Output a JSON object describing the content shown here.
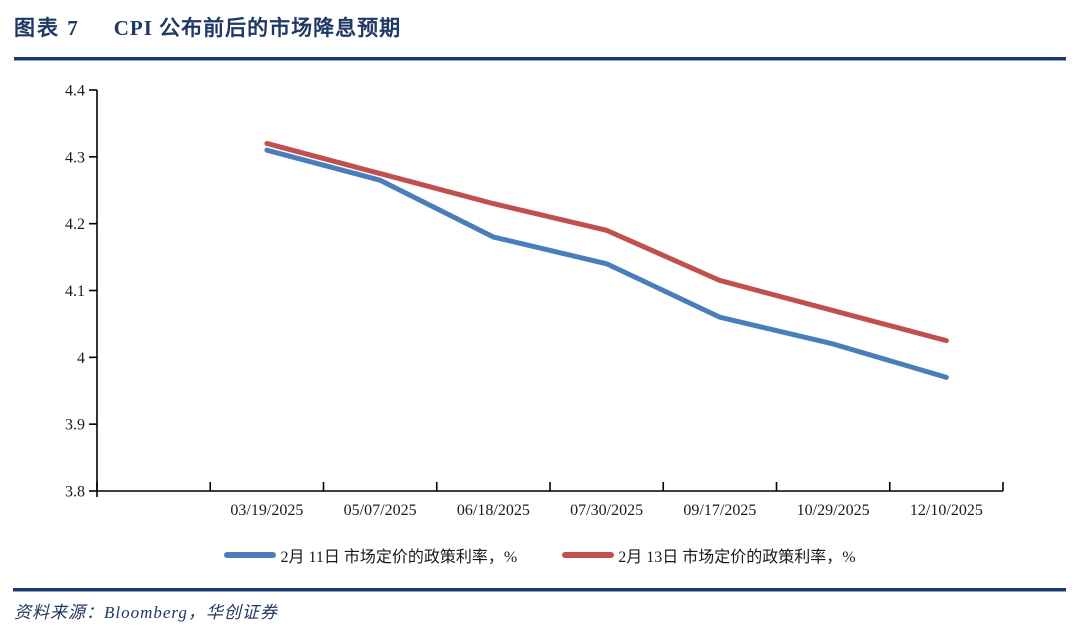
{
  "page": {
    "title_prefix": "图表 7",
    "title_text": "CPI 公布前后的市场降息预期",
    "source_text": "资料来源：Bloomberg，华创证券",
    "accent_color": "#1f3864",
    "text_color": "#1a1a1a"
  },
  "chart_data": {
    "type": "line",
    "title": "CPI 公布前后的市场降息预期",
    "x": [
      "03/19/2025",
      "05/07/2025",
      "06/18/2025",
      "07/30/2025",
      "09/17/2025",
      "10/29/2025",
      "12/10/2025"
    ],
    "series": [
      {
        "name": "2月 11日 市场定价的政策利率，%",
        "color": "#4a7ebb",
        "values": [
          4.31,
          4.265,
          4.18,
          4.14,
          4.06,
          4.02,
          3.97
        ]
      },
      {
        "name": "2月 13日 市场定价的政策利率，%",
        "color": "#c0504d",
        "values": [
          4.32,
          4.275,
          4.23,
          4.19,
          4.115,
          4.07,
          4.025
        ]
      }
    ],
    "xlabel": "",
    "ylabel": "",
    "ylim": [
      3.8,
      4.4
    ],
    "yticks": [
      3.8,
      3.9,
      4.0,
      4.1,
      4.2,
      4.3,
      4.4
    ],
    "ytick_labels": [
      "3.8",
      "3.9",
      "4",
      "4.1",
      "4.2",
      "4.3",
      "4.4"
    ],
    "grid": false,
    "legend_position": "bottom",
    "axis_color": "#000000"
  }
}
